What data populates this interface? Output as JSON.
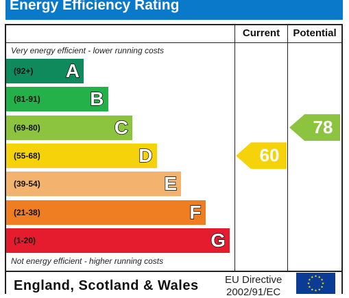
{
  "title": "Energy Efficiency Rating",
  "headers": {
    "current": "Current",
    "potential": "Potential"
  },
  "notes": {
    "top": "Very energy efficient - lower running costs",
    "bottom": "Not energy efficient - higher running costs"
  },
  "chart_data": {
    "type": "bar",
    "bands": [
      {
        "letter": "A",
        "range": "(92+)",
        "color": "#0f8a5c"
      },
      {
        "letter": "B",
        "range": "(81-91)",
        "color": "#25b14a"
      },
      {
        "letter": "C",
        "range": "(69-80)",
        "color": "#8cc43f"
      },
      {
        "letter": "D",
        "range": "(55-68)",
        "color": "#f5d20a"
      },
      {
        "letter": "E",
        "range": "(39-54)",
        "color": "#f3b26e"
      },
      {
        "letter": "F",
        "range": "(21-38)",
        "color": "#ef7d22"
      },
      {
        "letter": "G",
        "range": "(1-20)",
        "color": "#e41c2e"
      }
    ],
    "current": {
      "value": "60",
      "band": "D",
      "color": "#f5d20a"
    },
    "potential": {
      "value": "78",
      "band": "C",
      "color": "#8cc43f"
    }
  },
  "footer": {
    "country": "England, Scotland & Wales",
    "directive_line1": "EU Directive",
    "directive_line2": "2002/91/EC",
    "flag_icon": "eu-flag-icon"
  }
}
